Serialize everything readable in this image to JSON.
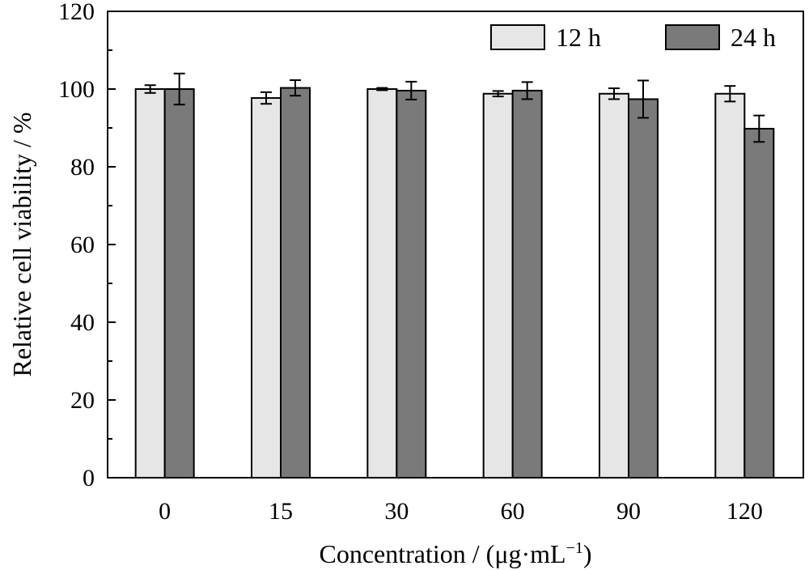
{
  "chart_data": {
    "type": "bar",
    "title": "",
    "xlabel": "Concentration / (μg·mL",
    "xlabel_sup": "−1",
    "xlabel_close": ")",
    "ylabel": "Relative cell viability / %",
    "ylim": [
      0,
      120
    ],
    "yticks": [
      "0",
      "20",
      "40",
      "60",
      "80",
      "100",
      "120"
    ],
    "categories": [
      "0",
      "15",
      "30",
      "60",
      "90",
      "120"
    ],
    "series": [
      {
        "name": "12 h",
        "color": "#e6e6e6",
        "values": [
          100,
          97.7,
          100,
          98.8,
          98.8,
          98.8
        ],
        "errors": [
          1.0,
          1.5,
          0.3,
          0.7,
          1.4,
          2.0
        ]
      },
      {
        "name": "24 h",
        "color": "#7a7a7a",
        "values": [
          100,
          100.3,
          99.6,
          99.6,
          97.4,
          89.8
        ],
        "errors": [
          4.0,
          2.0,
          2.3,
          2.2,
          4.8,
          3.4
        ]
      }
    ],
    "legend_position": "top-right",
    "grid": false
  }
}
